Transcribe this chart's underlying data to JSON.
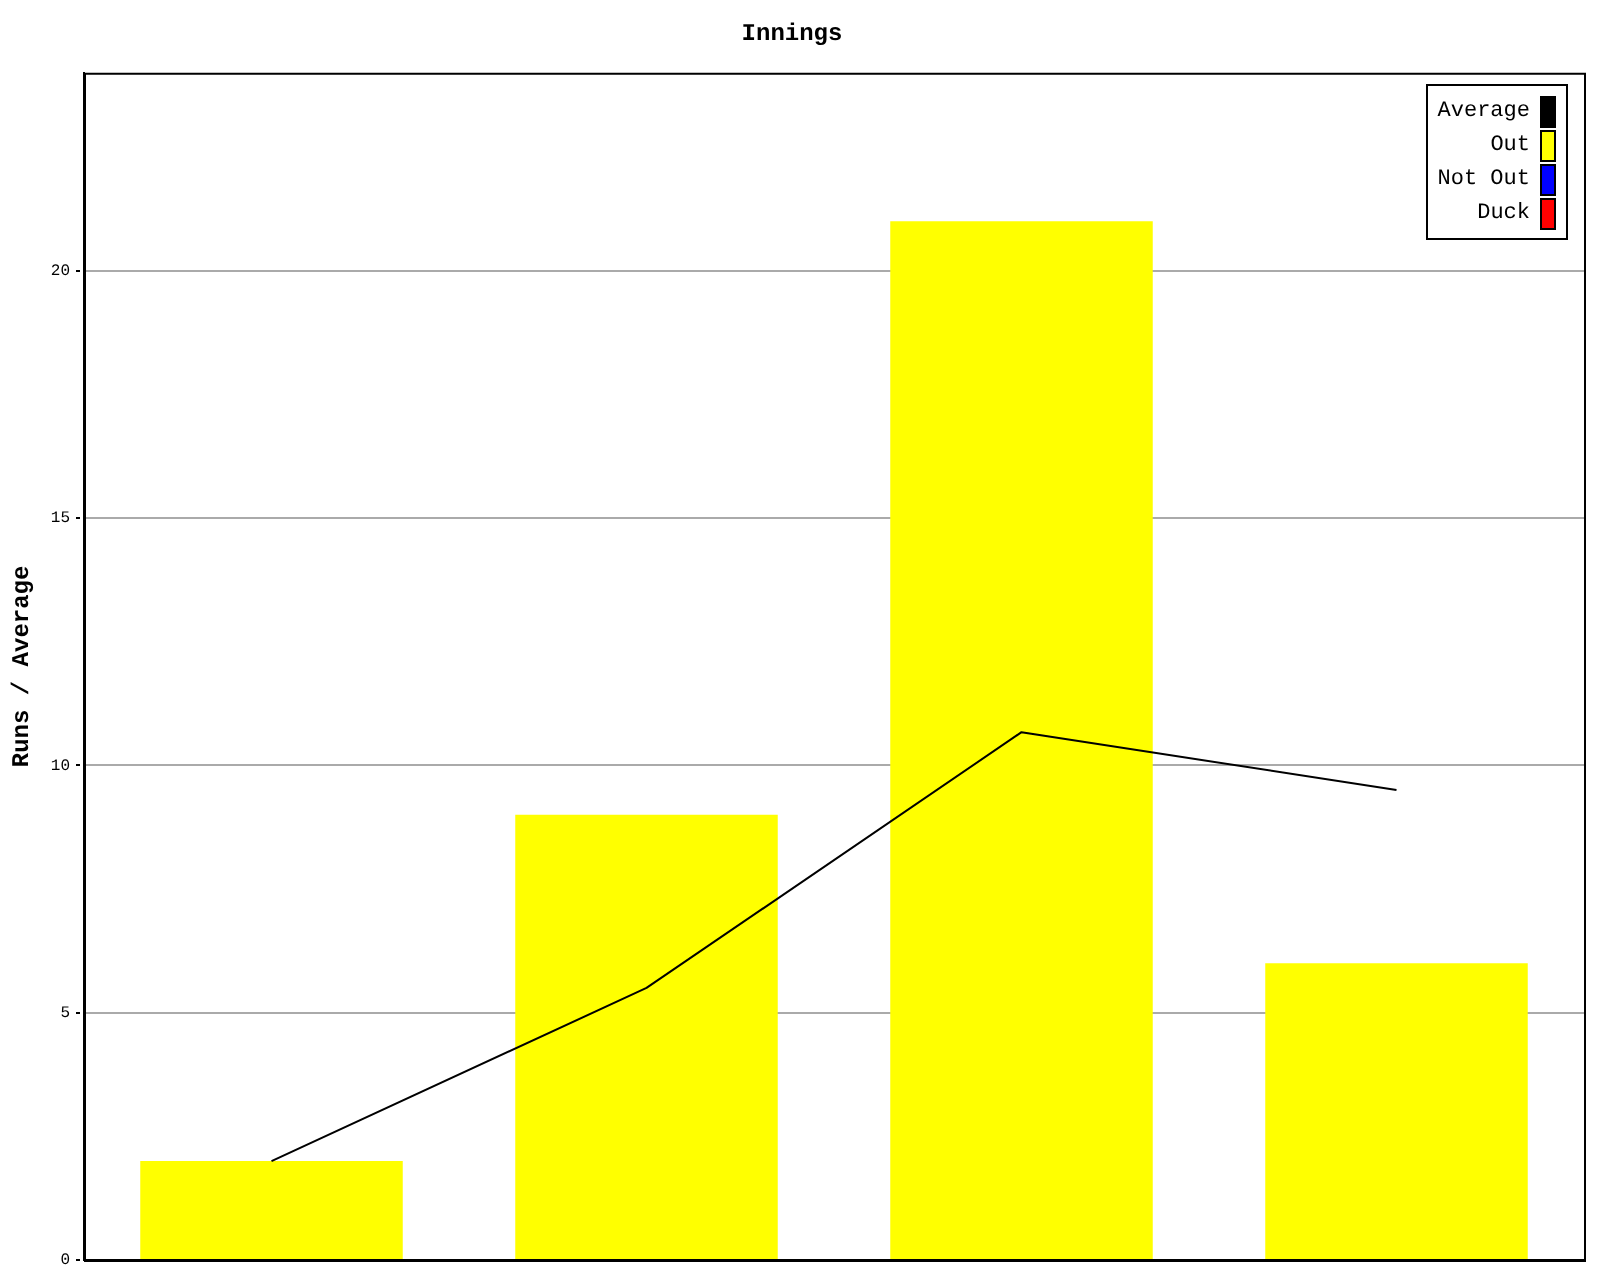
{
  "chart_data": {
    "type": "bar",
    "title": "Innings",
    "ylabel": "Runs / Average",
    "categories": [
      null,
      null,
      null,
      null
    ],
    "stacked": true,
    "series": [
      {
        "name": "Average",
        "type": "line",
        "color": "#000000",
        "values": [
          2,
          5.5,
          10.67,
          9.5
        ]
      },
      {
        "name": "Out",
        "color": "#ffff00",
        "values": [
          2,
          9,
          21,
          6
        ]
      },
      {
        "name": "Not Out",
        "color": "#0000ff",
        "values": [
          null,
          null,
          null,
          null
        ]
      },
      {
        "name": "Duck",
        "color": "#ff0000",
        "values": [
          null,
          null,
          null,
          null
        ]
      }
    ],
    "ylim": [
      0,
      24
    ],
    "yticks": [
      0,
      5,
      10,
      15,
      20
    ],
    "grid": "y",
    "legend": "top right",
    "marker": "none",
    "tick_labels": "y"
  }
}
